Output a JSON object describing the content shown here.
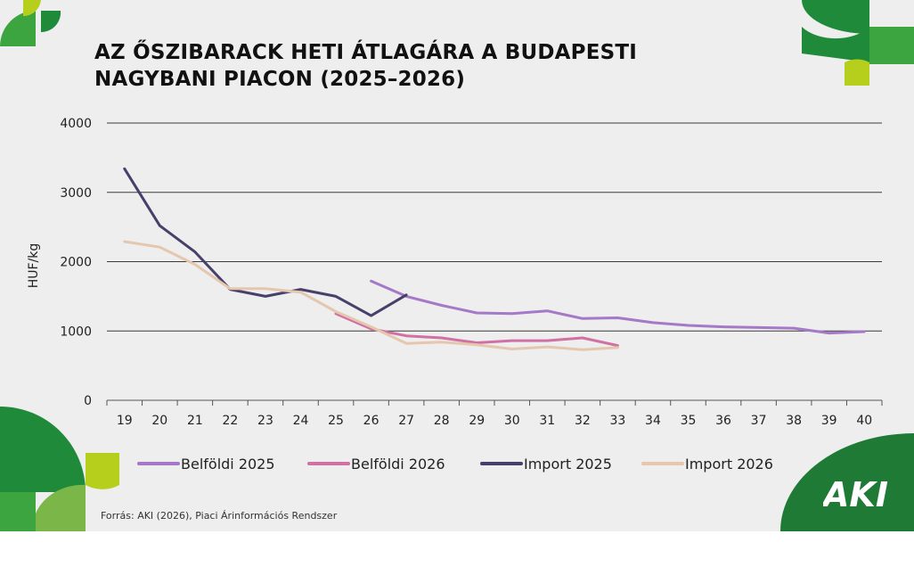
{
  "title_lines": [
    "AZ ŐSZIBARACK HETI ÁTLAGÁRA A BUDAPESTI",
    "NAGYBANI PIACON (2025–2026)"
  ],
  "source": "Forrás: AKI (2026), Piaci Árinformációs Rendszer",
  "logo_text": "AKI",
  "colors": {
    "background": "#eeeeee",
    "green_dark": "#1f8a3a",
    "green_mid": "#3da53f",
    "green_light": "#7ab648",
    "lime": "#b5cf1c",
    "logo_green": "#1e7a34"
  },
  "chart_data": {
    "type": "line",
    "ylabel": "HUF/kg",
    "xlabel": "",
    "ylim": [
      0,
      4000
    ],
    "yticks": [
      0,
      1000,
      2000,
      3000,
      4000
    ],
    "x": [
      19,
      20,
      21,
      22,
      23,
      24,
      25,
      26,
      27,
      28,
      29,
      30,
      31,
      32,
      33,
      34,
      35,
      36,
      37,
      38,
      39,
      40
    ],
    "grid": true,
    "legend_position": "bottom",
    "series": [
      {
        "name": "Belföldi 2025",
        "color": "#a678c8",
        "points": [
          [
            26,
            1720
          ],
          [
            27,
            1500
          ],
          [
            28,
            1370
          ],
          [
            29,
            1260
          ],
          [
            30,
            1250
          ],
          [
            31,
            1290
          ],
          [
            32,
            1180
          ],
          [
            33,
            1190
          ],
          [
            34,
            1120
          ],
          [
            35,
            1080
          ],
          [
            36,
            1060
          ],
          [
            37,
            1050
          ],
          [
            38,
            1040
          ],
          [
            39,
            970
          ],
          [
            40,
            990
          ]
        ]
      },
      {
        "name": "Belföldi 2026",
        "color": "#d070a3",
        "points": [
          [
            25,
            1250
          ],
          [
            26,
            1030
          ],
          [
            27,
            930
          ],
          [
            28,
            900
          ],
          [
            29,
            830
          ],
          [
            30,
            860
          ],
          [
            31,
            860
          ],
          [
            32,
            900
          ],
          [
            33,
            790
          ]
        ]
      },
      {
        "name": "Import 2025",
        "color": "#46406a",
        "points": [
          [
            19,
            3340
          ],
          [
            20,
            2520
          ],
          [
            21,
            2140
          ],
          [
            22,
            1600
          ],
          [
            23,
            1500
          ],
          [
            24,
            1600
          ],
          [
            25,
            1500
          ],
          [
            26,
            1220
          ],
          [
            27,
            1520
          ]
        ]
      },
      {
        "name": "Import 2026",
        "color": "#e4c7ae",
        "points": [
          [
            19,
            2290
          ],
          [
            20,
            2210
          ],
          [
            21,
            1960
          ],
          [
            22,
            1610
          ],
          [
            23,
            1610
          ],
          [
            24,
            1560
          ],
          [
            25,
            1280
          ],
          [
            26,
            1060
          ],
          [
            27,
            820
          ],
          [
            28,
            840
          ],
          [
            29,
            800
          ],
          [
            30,
            740
          ],
          [
            31,
            770
          ],
          [
            32,
            730
          ],
          [
            33,
            760
          ]
        ]
      }
    ]
  }
}
